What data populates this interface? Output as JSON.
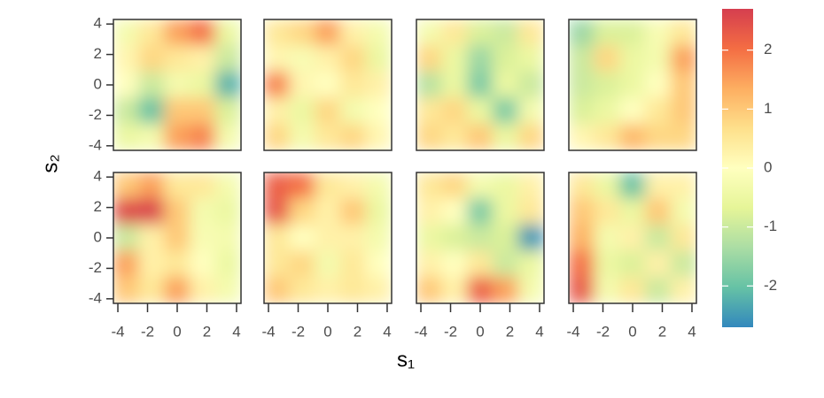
{
  "chart_data": {
    "type": "heatmap",
    "x_label": "s₁",
    "y_label": "s₂",
    "xlim": [
      -4.3,
      4.3
    ],
    "ylim": [
      -4.3,
      4.3
    ],
    "xticks": [
      -4,
      -2,
      0,
      2,
      4
    ],
    "yticks": [
      -4,
      -2,
      0,
      2,
      4
    ],
    "clim": [
      -2.7,
      2.7
    ],
    "colorbar_ticks": [
      -2,
      -1,
      0,
      1,
      2
    ],
    "colormap": [
      "#3288bd",
      "#66c2a5",
      "#abdda4",
      "#e6f598",
      "#ffffbf",
      "#fee08b",
      "#fdae61",
      "#f46d43",
      "#d53e4f"
    ],
    "panels": [
      {
        "values": [
          [
            -0.3,
            0.5,
            1.5,
            2.0,
            -0.5
          ],
          [
            0.2,
            0.8,
            0.5,
            0.3,
            -1.0
          ],
          [
            0.0,
            -1.0,
            -0.3,
            -0.5,
            -2.2
          ],
          [
            -1.0,
            -2.0,
            1.0,
            1.0,
            -0.8
          ],
          [
            -0.5,
            -0.3,
            1.5,
            1.8,
            -0.3
          ]
        ]
      },
      {
        "values": [
          [
            0.5,
            0.8,
            1.5,
            0.3,
            -0.3
          ],
          [
            0.2,
            -0.2,
            0.3,
            0.8,
            -0.5
          ],
          [
            1.8,
            0.2,
            0.0,
            0.5,
            0.3
          ],
          [
            0.3,
            -0.5,
            0.8,
            -0.3,
            0.0
          ],
          [
            0.8,
            -0.3,
            0.5,
            0.8,
            0.2
          ]
        ]
      },
      {
        "values": [
          [
            -0.3,
            0.5,
            -0.8,
            -1.0,
            0.5
          ],
          [
            0.8,
            -0.5,
            -1.5,
            -0.8,
            -0.5
          ],
          [
            -1.2,
            -0.5,
            -1.8,
            -0.5,
            -1.0
          ],
          [
            0.5,
            0.8,
            -0.5,
            -1.8,
            -0.3
          ],
          [
            0.8,
            0.5,
            1.0,
            -0.5,
            0.8
          ]
        ]
      },
      {
        "values": [
          [
            -1.5,
            -0.8,
            -0.8,
            -0.2,
            0.5
          ],
          [
            -1.0,
            0.8,
            -0.5,
            -0.3,
            1.5
          ],
          [
            -1.0,
            -0.8,
            -0.5,
            0.0,
            1.0
          ],
          [
            -0.8,
            -0.5,
            0.0,
            0.5,
            1.0
          ],
          [
            0.2,
            0.5,
            1.2,
            0.8,
            0.8
          ]
        ]
      },
      {
        "values": [
          [
            1.0,
            1.5,
            0.5,
            0.5,
            -0.3
          ],
          [
            2.5,
            2.6,
            1.0,
            -0.3,
            -0.5
          ],
          [
            -1.0,
            0.3,
            1.0,
            -0.2,
            -0.3
          ],
          [
            1.5,
            0.3,
            0.5,
            0.0,
            -0.5
          ],
          [
            1.0,
            0.5,
            1.5,
            0.3,
            -0.3
          ]
        ]
      },
      {
        "values": [
          [
            2.2,
            2.0,
            0.5,
            0.3,
            -0.3
          ],
          [
            2.3,
            0.8,
            0.3,
            1.0,
            -0.5
          ],
          [
            0.5,
            0.0,
            0.3,
            0.3,
            -0.3
          ],
          [
            0.5,
            0.8,
            -0.3,
            0.5,
            0.0
          ],
          [
            1.0,
            0.5,
            0.3,
            0.5,
            0.3
          ]
        ]
      },
      {
        "values": [
          [
            0.5,
            0.8,
            -0.3,
            -0.5,
            0.3
          ],
          [
            0.3,
            0.0,
            -1.8,
            -0.5,
            0.5
          ],
          [
            -0.5,
            -0.8,
            -1.0,
            -0.8,
            -2.5
          ],
          [
            0.3,
            0.0,
            0.5,
            -1.0,
            -0.5
          ],
          [
            1.0,
            0.3,
            2.2,
            1.5,
            -0.3
          ]
        ]
      },
      {
        "values": [
          [
            0.5,
            -0.5,
            -2.0,
            0.3,
            0.3
          ],
          [
            1.0,
            0.5,
            -0.5,
            1.0,
            -0.3
          ],
          [
            1.3,
            -0.3,
            0.3,
            -1.0,
            0.5
          ],
          [
            2.0,
            -0.5,
            -0.8,
            0.3,
            -1.0
          ],
          [
            2.3,
            -0.3,
            0.5,
            -1.0,
            0.3
          ]
        ]
      }
    ]
  }
}
